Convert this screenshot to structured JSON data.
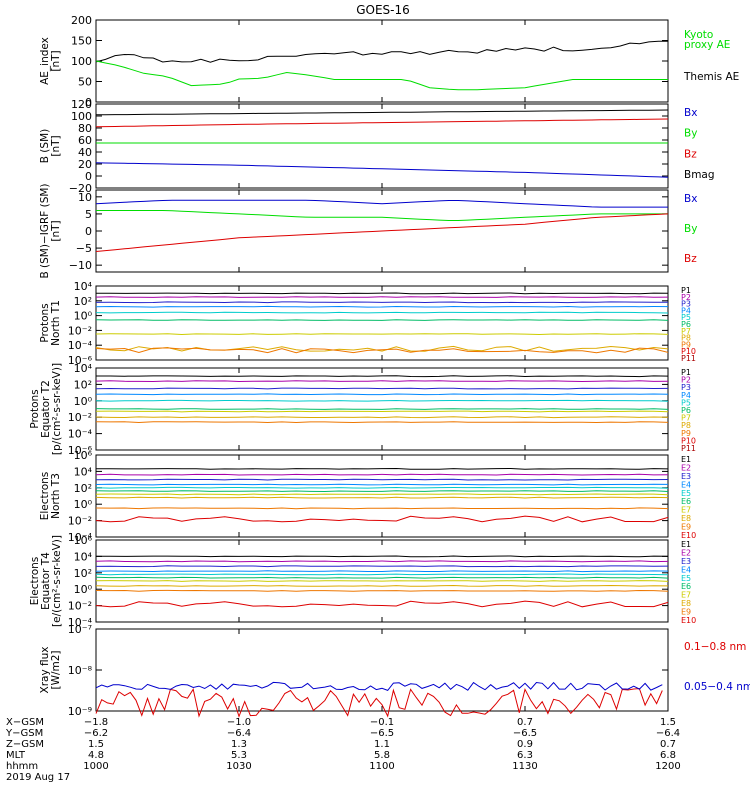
{
  "title": "GOES-16",
  "colors": {
    "black": "#000000",
    "green": "#00dd00",
    "red": "#dd0000",
    "blue": "#0000cc",
    "P": [
      "#000000",
      "#aa00aa",
      "#2222cc",
      "#0088ff",
      "#00cccc",
      "#00bb66",
      "#cccc00",
      "#ddaa00",
      "#ee7700",
      "#dd0000",
      "#aa0000"
    ],
    "E": [
      "#000000",
      "#aa00aa",
      "#2222cc",
      "#0088ff",
      "#00cccc",
      "#00bb66",
      "#cccc00",
      "#ddaa00",
      "#ee7700",
      "#dd0000"
    ]
  },
  "chart_data": [
    {
      "id": "ae",
      "type": "line",
      "ylabel": [
        "AE_index",
        "[nT]"
      ],
      "ylim": [
        0,
        200
      ],
      "yticks": [
        {
          "v": 200,
          "t": "200"
        },
        {
          "v": 150,
          "t": "150"
        },
        {
          "v": 100,
          "t": "100"
        },
        {
          "v": 50,
          "t": "50"
        },
        {
          "v": 0,
          "t": "0"
        }
      ],
      "legend": [
        {
          "text": "Kyoto",
          "color": "green"
        },
        {
          "text": "proxy AE",
          "color": "green"
        },
        {
          "text": "Themis AE",
          "color": "black"
        }
      ],
      "series": [
        {
          "name": "Themis AE",
          "color": "black",
          "x": [
            0,
            5,
            10,
            15,
            20,
            30,
            45,
            60,
            75,
            90,
            105,
            120
          ],
          "y": [
            100,
            115,
            110,
            100,
            102,
            98,
            120,
            118,
            122,
            128,
            130,
            150
          ]
        },
        {
          "name": "Kyoto proxy AE",
          "color": "green",
          "x": [
            0,
            5,
            10,
            15,
            20,
            27,
            30,
            35,
            40,
            45,
            50,
            55,
            60,
            65,
            70,
            75,
            80,
            90,
            100,
            110,
            120
          ],
          "y": [
            100,
            88,
            70,
            62,
            40,
            44,
            56,
            58,
            72,
            65,
            55,
            55,
            55,
            55,
            35,
            30,
            30,
            35,
            55,
            55,
            55
          ]
        }
      ]
    },
    {
      "id": "bsm",
      "type": "line",
      "ylabel": [
        "B (SM)",
        "[nT]"
      ],
      "ylim": [
        -20,
        120
      ],
      "yticks": [
        {
          "v": 120,
          "t": "120"
        },
        {
          "v": 100,
          "t": "100"
        },
        {
          "v": 80,
          "t": "80"
        },
        {
          "v": 60,
          "t": "60"
        },
        {
          "v": 40,
          "t": "40"
        },
        {
          "v": 20,
          "t": "20"
        },
        {
          "v": 0,
          "t": "0"
        },
        {
          "v": -20,
          "t": "−20"
        }
      ],
      "legend": [
        {
          "text": "Bx",
          "color": "blue"
        },
        {
          "text": "By",
          "color": "green"
        },
        {
          "text": "Bz",
          "color": "red"
        },
        {
          "text": "Bmag",
          "color": "black"
        }
      ],
      "series": [
        {
          "name": "Bmag",
          "color": "black",
          "x": [
            0,
            30,
            60,
            90,
            120
          ],
          "y": [
            102,
            104,
            106,
            108,
            110
          ]
        },
        {
          "name": "Bz",
          "color": "red",
          "x": [
            0,
            30,
            60,
            90,
            120
          ],
          "y": [
            82,
            86,
            89,
            92,
            95
          ]
        },
        {
          "name": "By",
          "color": "green",
          "x": [
            0,
            30,
            60,
            90,
            120
          ],
          "y": [
            55,
            55,
            55,
            55,
            55
          ]
        },
        {
          "name": "Bx",
          "color": "blue",
          "x": [
            0,
            30,
            60,
            90,
            120
          ],
          "y": [
            22,
            18,
            12,
            6,
            -2
          ]
        }
      ]
    },
    {
      "id": "bdiff",
      "type": "line",
      "ylabel": [
        "B (SM)−IGRF (SM)",
        "[nT]"
      ],
      "ylim": [
        -12,
        12
      ],
      "yticks": [
        {
          "v": 10,
          "t": "10"
        },
        {
          "v": 5,
          "t": "5"
        },
        {
          "v": 0,
          "t": "0"
        },
        {
          "v": -5,
          "t": "−5"
        },
        {
          "v": -10,
          "t": "−10"
        }
      ],
      "legend": [
        {
          "text": "Bx",
          "color": "blue"
        },
        {
          "text": "By",
          "color": "green"
        },
        {
          "text": "Bz",
          "color": "red"
        }
      ],
      "series": [
        {
          "name": "Bx",
          "color": "blue",
          "x": [
            0,
            15,
            30,
            45,
            60,
            75,
            90,
            105,
            120
          ],
          "y": [
            8,
            9,
            9,
            9,
            8,
            9,
            8,
            7,
            7
          ]
        },
        {
          "name": "By",
          "color": "green",
          "x": [
            0,
            15,
            30,
            45,
            60,
            75,
            90,
            105,
            120
          ],
          "y": [
            6,
            6,
            5,
            4,
            4,
            3,
            4,
            5,
            5
          ]
        },
        {
          "name": "Bz",
          "color": "red",
          "x": [
            0,
            15,
            30,
            45,
            60,
            75,
            90,
            105,
            120
          ],
          "y": [
            -6,
            -4,
            -2,
            -1,
            0,
            1,
            2,
            4,
            5
          ]
        }
      ]
    },
    {
      "id": "pn",
      "type": "line",
      "log": true,
      "ylabel": [
        "Protons",
        "North T1"
      ],
      "ylim": [
        -6,
        4
      ],
      "yticks": [
        {
          "v": 4,
          "t": "10⁴"
        },
        {
          "v": 2,
          "t": "10²"
        },
        {
          "v": 0,
          "t": "10⁰"
        },
        {
          "v": -2,
          "t": "10⁻²"
        },
        {
          "v": -4,
          "t": "10⁻⁴"
        },
        {
          "v": -6,
          "t": "10⁻⁶"
        }
      ],
      "channels": [
        "P1",
        "P2",
        "P3",
        "P4",
        "P5",
        "P6",
        "P7",
        "P8",
        "P9",
        "P10",
        "P11"
      ],
      "levels": [
        3.0,
        2.5,
        1.8,
        1.2,
        0.4,
        -0.6,
        -2.5,
        -4.5,
        -4.7,
        -6,
        -6
      ]
    },
    {
      "id": "pe",
      "type": "line",
      "log": true,
      "ylabel": [
        "Protons",
        "Equator T2",
        "[p/(cm²-s-sr-keV)]"
      ],
      "ylim": [
        -6,
        4
      ],
      "yticks": [
        {
          "v": 4,
          "t": "10⁴"
        },
        {
          "v": 2,
          "t": "10²"
        },
        {
          "v": 0,
          "t": "10⁰"
        },
        {
          "v": -2,
          "t": "10⁻²"
        },
        {
          "v": -4,
          "t": "10⁻⁴"
        },
        {
          "v": -6,
          "t": "10⁻⁶"
        }
      ],
      "channels": [
        "P1",
        "P2",
        "P3",
        "P4",
        "P5",
        "P6",
        "P7",
        "P8",
        "P9",
        "P10",
        "P11"
      ],
      "levels": [
        3.0,
        2.4,
        1.5,
        0.8,
        0.0,
        -1.0,
        -1.3,
        -2.0,
        -2.6,
        -6,
        -6
      ]
    },
    {
      "id": "en",
      "type": "line",
      "log": true,
      "ylabel": [
        "Electrons",
        "North T3"
      ],
      "ylim": [
        -4,
        6
      ],
      "yticks": [
        {
          "v": 6,
          "t": "10⁶"
        },
        {
          "v": 4,
          "t": "10⁴"
        },
        {
          "v": 2,
          "t": "10²"
        },
        {
          "v": 0,
          "t": "10⁰"
        },
        {
          "v": -2,
          "t": "10⁻²"
        },
        {
          "v": -4,
          "t": "10⁻⁴"
        }
      ],
      "channels": [
        "E1",
        "E2",
        "E3",
        "E4",
        "E5",
        "E6",
        "E7",
        "E8",
        "E9",
        "E10"
      ],
      "levels": [
        4.3,
        3.6,
        3.0,
        2.4,
        2.0,
        1.6,
        1.2,
        0.8,
        -0.5,
        -1.8
      ]
    },
    {
      "id": "ee",
      "type": "line",
      "log": true,
      "ylabel": [
        "Electrons",
        "Equator T4",
        "[e/(cm²-s-sr-keV)]"
      ],
      "ylim": [
        -4,
        6
      ],
      "yticks": [
        {
          "v": 6,
          "t": "10⁶"
        },
        {
          "v": 4,
          "t": "10⁴"
        },
        {
          "v": 2,
          "t": "10²"
        },
        {
          "v": 0,
          "t": "10⁰"
        },
        {
          "v": -2,
          "t": "10⁻²"
        },
        {
          "v": -4,
          "t": "10⁻⁴"
        }
      ],
      "channels": [
        "E1",
        "E2",
        "E3",
        "E4",
        "E5",
        "E6",
        "E7",
        "E8",
        "E9",
        "E10"
      ],
      "levels": [
        4.0,
        3.4,
        2.8,
        2.2,
        1.8,
        1.4,
        1.0,
        0.4,
        -0.2,
        -1.8
      ]
    },
    {
      "id": "xray",
      "type": "line",
      "log": true,
      "ylabel": [
        "Xray flux",
        "[W/m2]"
      ],
      "ylim": [
        -9,
        -7
      ],
      "yticks": [
        {
          "v": -7,
          "t": "10⁻⁷"
        },
        {
          "v": -8,
          "t": "10⁻⁸"
        },
        {
          "v": -9,
          "t": "10⁻⁹"
        }
      ],
      "legend": [
        {
          "text": "0.1−0.8 nm",
          "color": "red"
        },
        {
          "text": "0.05−0.4 nm",
          "color": "blue"
        }
      ],
      "series": [
        {
          "name": "0.1−0.8 nm",
          "color": "red",
          "level": -8.8
        },
        {
          "name": "0.05−0.4 nm",
          "color": "blue",
          "level": -8.4
        }
      ]
    }
  ],
  "xaxis": {
    "ticks": [
      0,
      30,
      60,
      90,
      120
    ],
    "rows": [
      {
        "label": "X−GSM",
        "values": [
          "−1.8",
          "−1.0",
          "−0.1",
          "0.7",
          "1.5"
        ]
      },
      {
        "label": "Y−GSM",
        "values": [
          "−6.2",
          "−6.4",
          "−6.5",
          "−6.5",
          "−6.4"
        ]
      },
      {
        "label": "Z−GSM",
        "values": [
          "1.5",
          "1.3",
          "1.1",
          "0.9",
          "0.7"
        ]
      },
      {
        "label": "MLT",
        "values": [
          "4.8",
          "5.3",
          "5.8",
          "6.3",
          "6.8"
        ]
      },
      {
        "label": "hhmm",
        "values": [
          "1000",
          "1030",
          "1100",
          "1130",
          "1200"
        ]
      }
    ],
    "date": "2019 Aug 17"
  }
}
